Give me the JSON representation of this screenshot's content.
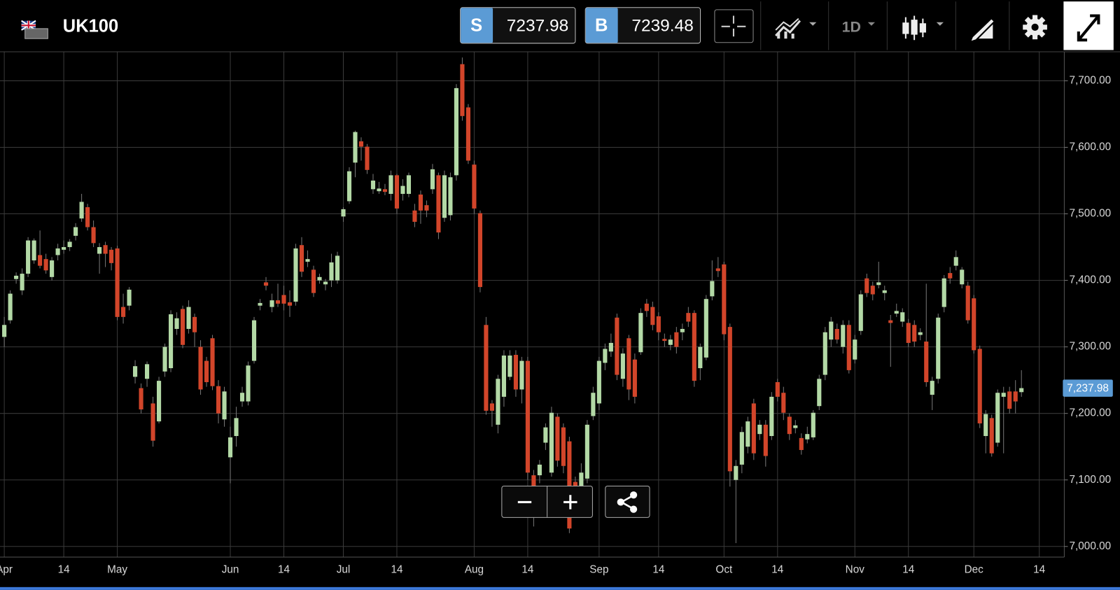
{
  "header": {
    "symbol": "UK100",
    "sell": {
      "label": "S",
      "price": "7237.98"
    },
    "buy": {
      "label": "B",
      "price": "7239.48"
    },
    "interval": "1D"
  },
  "chart_data": {
    "type": "candlestick",
    "up_color": "#b3d9a6",
    "down_color": "#d2452a",
    "wick_color": "#777777",
    "grid": true,
    "ylim": [
      6984,
      7743
    ],
    "yticks": [
      {
        "value": 7000,
        "label": "7,000.00"
      },
      {
        "value": 7100,
        "label": "7,100.00"
      },
      {
        "value": 7200,
        "label": "7,200.00"
      },
      {
        "value": 7300,
        "label": "7,300.00"
      },
      {
        "value": 7400,
        "label": "7,400.00"
      },
      {
        "value": 7500,
        "label": "7,500.00"
      },
      {
        "value": 7600,
        "label": "7,600.00"
      },
      {
        "value": 7700,
        "label": "7,700.00"
      }
    ],
    "last_price": {
      "value": 7237.98,
      "label": "7,237.98"
    },
    "categories": [
      "Apr",
      null,
      null,
      null,
      null,
      null,
      null,
      null,
      null,
      null,
      "14",
      null,
      null,
      null,
      null,
      null,
      null,
      null,
      null,
      "May",
      null,
      null,
      null,
      null,
      null,
      null,
      null,
      null,
      null,
      null,
      null,
      null,
      null,
      null,
      null,
      null,
      null,
      null,
      "Jun",
      null,
      null,
      null,
      null,
      null,
      null,
      null,
      null,
      "14",
      null,
      null,
      null,
      null,
      null,
      null,
      null,
      null,
      null,
      "Jul",
      null,
      null,
      null,
      null,
      null,
      null,
      null,
      null,
      "14",
      null,
      null,
      null,
      null,
      null,
      null,
      null,
      null,
      null,
      null,
      null,
      null,
      "Aug",
      null,
      null,
      null,
      null,
      null,
      null,
      null,
      null,
      "14",
      null,
      null,
      null,
      null,
      null,
      null,
      null,
      null,
      null,
      null,
      null,
      "Sep",
      null,
      null,
      null,
      null,
      null,
      null,
      null,
      null,
      null,
      "14",
      null,
      null,
      null,
      null,
      null,
      null,
      null,
      null,
      null,
      null,
      "Oct",
      null,
      null,
      null,
      null,
      null,
      null,
      null,
      null,
      "14",
      null,
      null,
      null,
      null,
      null,
      null,
      null,
      null,
      null,
      null,
      null,
      null,
      "Nov",
      null,
      null,
      null,
      null,
      null,
      null,
      null,
      null,
      "14",
      null,
      null,
      null,
      null,
      null,
      null,
      null,
      null,
      null,
      null,
      "Dec",
      null,
      null,
      null,
      null,
      null,
      null,
      null,
      null,
      null,
      null,
      "14"
    ],
    "open": [
      7315,
      7340,
      7402,
      7385,
      7410,
      7430,
      7438,
      7432,
      7405,
      7438,
      7446,
      7450,
      7467,
      7493,
      7510,
      7480,
      7440,
      7453,
      7446,
      7448,
      7360,
      7362,
      7255,
      7238,
      7252,
      7215,
      7188,
      7263,
      7268,
      7327,
      7357,
      7327,
      7345,
      7300,
      7279,
      7313,
      7241,
      7191,
      7134,
      7166,
      7218,
      7218,
      7279,
      7362,
      7397,
      7360,
      7370,
      7378,
      7367,
      7368,
      7453,
      7428,
      7416,
      7400,
      7394,
      7400,
      7400,
      7496,
      7519,
      7577,
      7609,
      7601,
      7537,
      7534,
      7537,
      7530,
      7558,
      7530,
      7530,
      7505,
      7529,
      7513,
      7537,
      7558,
      7494,
      7498,
      7558,
      7725,
      7660,
      7574,
      7501,
      7333,
      7215,
      7183,
      7225,
      7255,
      7288,
      7236,
      7279,
      7107,
      7107,
      7156,
      7111,
      7195,
      7179,
      7158,
      7097,
      7086,
      7102,
      7196,
      7215,
      7276,
      7293,
      7344,
      7252,
      7313,
      7281,
      7292,
      7365,
      7360,
      7346,
      7312,
      7303,
      7322,
      7322,
      7351,
      7351,
      7268,
      7284,
      7376,
      7418,
      7424,
      7330,
      7100,
      7123,
      7150,
      7215,
      7169,
      7183,
      7166,
      7247,
      7231,
      7195,
      7178,
      7163,
      7161,
      7164,
      7211,
      7258,
      7311,
      7327,
      7300,
      7333,
      7281,
      7324,
      7403,
      7392,
      7393,
      7381,
      7340,
      7350,
      7338,
      7336,
      7333,
      7318,
      7308,
      7228,
      7252,
      7360,
      7411,
      7422,
      7394,
      7392,
      7373,
      7297,
      7166,
      7193,
      7156,
      7225,
      7233,
      7233,
      7232,
      null,
      null,
      null
    ],
    "high": [
      7345,
      7385,
      7412,
      7418,
      7465,
      7463,
      7475,
      7440,
      7435,
      7455,
      7460,
      7462,
      7486,
      7530,
      7515,
      7490,
      7456,
      7458,
      7450,
      7452,
      7380,
      7390,
      7280,
      7245,
      7278,
      7225,
      7255,
      7305,
      7355,
      7352,
      7362,
      7370,
      7350,
      7310,
      7285,
      7318,
      7250,
      7240,
      7180,
      7210,
      7240,
      7278,
      7345,
      7372,
      7405,
      7380,
      7395,
      7392,
      7385,
      7455,
      7465,
      7445,
      7422,
      7410,
      7402,
      7440,
      7443,
      7510,
      7570,
      7625,
      7615,
      7605,
      7560,
      7548,
      7545,
      7565,
      7560,
      7552,
      7562,
      7515,
      7535,
      7520,
      7575,
      7562,
      7565,
      7562,
      7695,
      7735,
      7665,
      7580,
      7505,
      7345,
      7220,
      7258,
      7295,
      7295,
      7295,
      7285,
      7285,
      7115,
      7130,
      7185,
      7210,
      7200,
      7185,
      7165,
      7105,
      7125,
      7190,
      7240,
      7285,
      7305,
      7320,
      7350,
      7298,
      7318,
      7290,
      7358,
      7372,
      7368,
      7352,
      7320,
      7318,
      7330,
      7335,
      7360,
      7355,
      7305,
      7378,
      7430,
      7435,
      7428,
      7335,
      7130,
      7180,
      7195,
      7222,
      7190,
      7190,
      7232,
      7252,
      7240,
      7200,
      7190,
      7170,
      7180,
      7205,
      7258,
      7330,
      7345,
      7335,
      7340,
      7340,
      7318,
      7385,
      7410,
      7398,
      7428,
      7392,
      7348,
      7365,
      7358,
      7342,
      7340,
      7328,
      7395,
      7255,
      7350,
      7408,
      7420,
      7445,
      7420,
      7398,
      7378,
      7302,
      7205,
      7198,
      7236,
      7240,
      7240,
      7250,
      7265,
      null,
      null,
      null
    ],
    "low": [
      7300,
      7335,
      7395,
      7378,
      7405,
      7425,
      7418,
      7410,
      7400,
      7430,
      7440,
      7444,
      7460,
      7488,
      7475,
      7450,
      7410,
      7420,
      7415,
      7340,
      7335,
      7355,
      7245,
      7200,
      7240,
      7150,
      7185,
      7255,
      7262,
      7318,
      7298,
      7320,
      7300,
      7228,
      7240,
      7235,
      7185,
      7180,
      7095,
      7150,
      7210,
      7212,
      7275,
      7355,
      7385,
      7352,
      7360,
      7355,
      7345,
      7362,
      7405,
      7420,
      7375,
      7395,
      7385,
      7390,
      7395,
      7488,
      7515,
      7555,
      7580,
      7560,
      7530,
      7530,
      7528,
      7520,
      7500,
      7520,
      7525,
      7480,
      7485,
      7495,
      7530,
      7462,
      7488,
      7490,
      7550,
      7640,
      7575,
      7500,
      7382,
      7198,
      7180,
      7170,
      7210,
      7250,
      7225,
      7215,
      7100,
      7030,
      7095,
      7145,
      7105,
      7120,
      7110,
      7020,
      7070,
      7075,
      7095,
      7190,
      7205,
      7265,
      7285,
      7250,
      7240,
      7220,
      7215,
      7288,
      7345,
      7325,
      7310,
      7300,
      7295,
      7290,
      7310,
      7330,
      7240,
      7250,
      7280,
      7370,
      7405,
      7310,
      7090,
      7005,
      7110,
      7140,
      7130,
      7160,
      7120,
      7160,
      7218,
      7190,
      7160,
      7170,
      7138,
      7155,
      7160,
      7205,
      7250,
      7300,
      7305,
      7290,
      7260,
      7275,
      7318,
      7375,
      7370,
      7388,
      7370,
      7270,
      7345,
      7330,
      7300,
      7300,
      7310,
      7240,
      7205,
      7245,
      7352,
      7395,
      7415,
      7388,
      7335,
      7290,
      7178,
      7140,
      7135,
      7150,
      7140,
      7200,
      7200,
      7225,
      null,
      null,
      null
    ],
    "close": [
      7333,
      7380,
      7407,
      7410,
      7460,
      7460,
      7422,
      7415,
      7430,
      7448,
      7450,
      7458,
      7480,
      7518,
      7480,
      7456,
      7450,
      7440,
      7426,
      7345,
      7345,
      7386,
      7271,
      7206,
      7274,
      7159,
      7249,
      7300,
      7349,
      7343,
      7303,
      7360,
      7322,
      7236,
      7247,
      7241,
      7200,
      7233,
      7164,
      7193,
      7231,
      7272,
      7340,
      7366,
      7392,
      7370,
      7365,
      7365,
      7362,
      7448,
      7413,
      7432,
      7381,
      7405,
      7398,
      7427,
      7437,
      7507,
      7564,
      7623,
      7601,
      7566,
      7550,
      7538,
      7533,
      7558,
      7508,
      7542,
      7558,
      7488,
      7505,
      7505,
      7567,
      7472,
      7558,
      7555,
      7689,
      7647,
      7580,
      7508,
      7390,
      7204,
      7204,
      7252,
      7287,
      7287,
      7236,
      7279,
      7111,
      7078,
      7123,
      7179,
      7201,
      7129,
      7121,
      7027,
      7081,
      7111,
      7183,
      7231,
      7279,
      7297,
      7306,
      7258,
      7290,
      7236,
      7225,
      7351,
      7354,
      7333,
      7322,
      7309,
      7311,
      7300,
      7327,
      7338,
      7249,
      7300,
      7372,
      7399,
      7414,
      7319,
      7113,
      7121,
      7172,
      7188,
      7140,
      7183,
      7136,
      7225,
      7225,
      7201,
      7169,
      7182,
      7145,
      7169,
      7201,
      7252,
      7322,
      7338,
      7311,
      7333,
      7265,
      7311,
      7379,
      7381,
      7379,
      7397,
      7385,
      7336,
      7354,
      7352,
      7306,
      7308,
      7322,
      7247,
      7249,
      7344,
      7403,
      7403,
      7435,
      7416,
      7340,
      7295,
      7185,
      7199,
      7140,
      7231,
      7231,
      7207,
      7218,
      7238,
      null,
      null,
      null
    ]
  }
}
